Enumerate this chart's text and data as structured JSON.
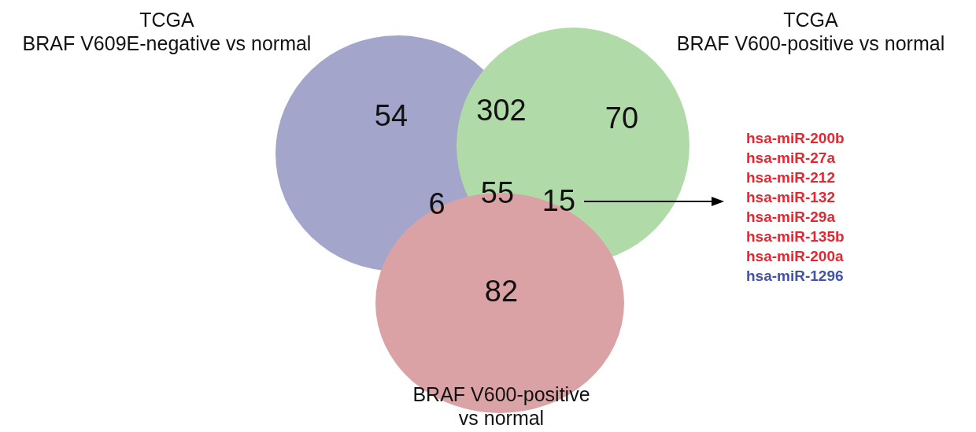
{
  "chart_data": {
    "type": "other",
    "categories": [
      null,
      null,
      null,
      null,
      null,
      null,
      null
    ],
    "values": [
      54,
      302,
      70,
      6,
      55,
      15,
      82
    ],
    "data_labels": true,
    "annotations": [
      "TCGA\nBRAF V609E-negative vs normal",
      "TCGA\nBRAF V600-positive vs normal",
      "BRAF V600-positive\nvs normal",
      "hsa-miR-200b",
      "hsa-miR-27a",
      "hsa-miR-212",
      "hsa-miR-132",
      "hsa-miR-29a",
      "hsa-miR-135b",
      "hsa-miR-200a",
      "hsa-miR-1296"
    ]
  }
}
